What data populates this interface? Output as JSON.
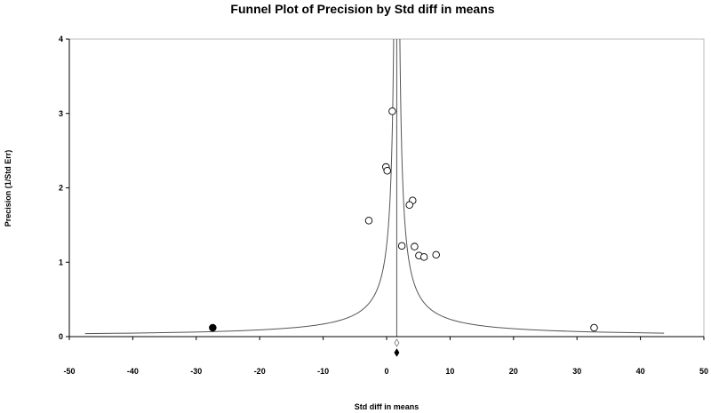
{
  "chart_data": {
    "type": "scatter",
    "title": "Funnel Plot of Precision by Std diff in means",
    "xlabel": "Std diff in means",
    "ylabel": "Precision (1/Std Err)",
    "xlim": [
      -50,
      50
    ],
    "ylim": [
      0,
      4
    ],
    "x_ticks": [
      "-50",
      "-40",
      "-30",
      "-20",
      "-10",
      "0",
      "10",
      "20",
      "30",
      "40",
      "50"
    ],
    "y_ticks": [
      "0",
      "1",
      "2",
      "3",
      "4"
    ],
    "grid": false,
    "legend": "none",
    "center_line_x": 1.6,
    "funnel_k": 1.96,
    "series": [
      {
        "marker": "open-circle",
        "points": [
          {
            "x": 0.9,
            "y": 3.03
          },
          {
            "x": -0.1,
            "y": 2.28
          },
          {
            "x": 0.1,
            "y": 2.23
          },
          {
            "x": 4.1,
            "y": 1.83
          },
          {
            "x": 3.6,
            "y": 1.77
          },
          {
            "x": -2.8,
            "y": 1.56
          },
          {
            "x": 4.4,
            "y": 1.21
          },
          {
            "x": 2.4,
            "y": 1.22
          },
          {
            "x": 5.1,
            "y": 1.09
          },
          {
            "x": 5.9,
            "y": 1.07
          },
          {
            "x": 7.8,
            "y": 1.1
          },
          {
            "x": 32.7,
            "y": 0.12
          }
        ]
      },
      {
        "marker": "filled-circle",
        "points": [
          {
            "x": -27.4,
            "y": 0.12
          }
        ]
      }
    ],
    "summary_markers": [
      {
        "marker": "open-diamond",
        "x": 1.6
      },
      {
        "marker": "filled-diamond",
        "x": 1.6
      }
    ],
    "colors": {
      "axis": "#000000",
      "funnel": "#555555",
      "point_fill_open": "#ffffff",
      "point_fill_filled": "#000000"
    }
  }
}
